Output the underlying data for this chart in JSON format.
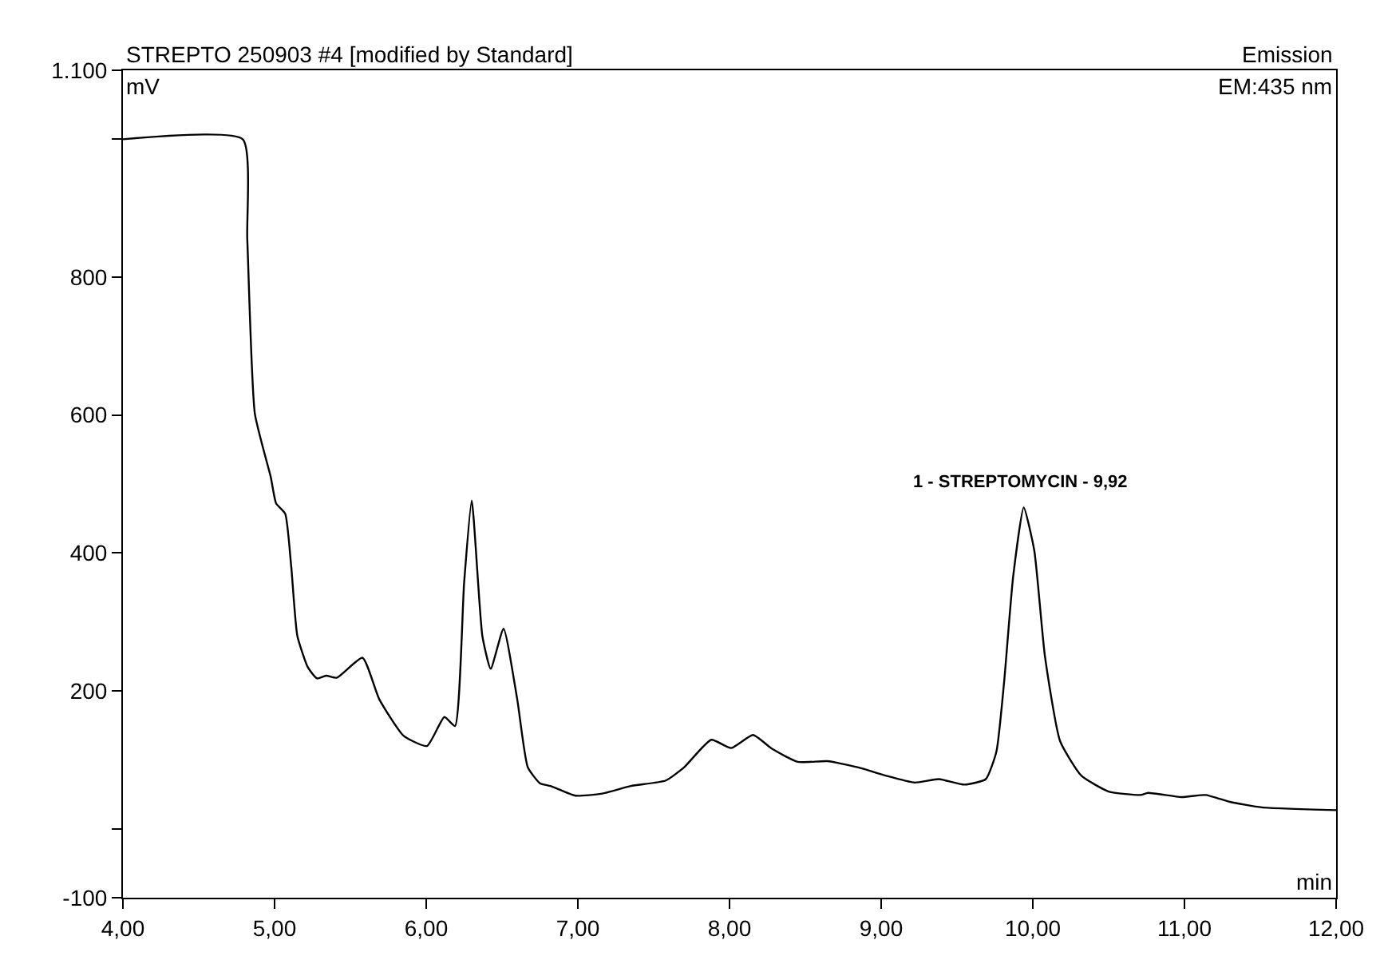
{
  "chart_data": {
    "type": "line",
    "title": "STREPTO 250903 #4 [modified by Standard]",
    "subtitle": "Emission",
    "xlabel": "min",
    "ylabel": "mV",
    "annotations": [
      "EM:435 nm",
      {
        "text": "1 - STREPTOMYCIN - 9,92",
        "x": 9.92,
        "y": 466
      }
    ],
    "x": [
      4.0,
      4.79,
      4.82,
      4.87,
      4.975,
      5.01,
      5.07,
      5.11,
      5.15,
      5.22,
      5.28,
      5.34,
      5.41,
      5.58,
      5.69,
      5.85,
      6.005,
      6.12,
      6.19,
      6.25,
      6.3,
      6.37,
      6.425,
      6.51,
      6.6,
      6.67,
      6.75,
      6.82,
      6.985,
      7.16,
      7.35,
      7.58,
      7.7,
      7.88,
      8.01,
      8.155,
      8.28,
      8.45,
      8.645,
      8.85,
      9.03,
      9.22,
      9.38,
      9.55,
      9.69,
      9.76,
      9.81,
      9.87,
      9.94,
      10.01,
      10.08,
      10.18,
      10.32,
      10.5,
      10.71,
      10.76,
      10.98,
      11.14,
      11.3,
      11.51,
      12.0
    ],
    "series": [
      {
        "color": "#000000",
        "values": [
          1000,
          1000,
          855,
          602,
          510,
          472,
          457,
          380,
          280,
          234,
          218,
          222,
          219,
          248,
          188,
          135,
          120,
          162,
          149,
          357,
          476,
          280,
          232,
          290,
          188,
          89,
          66,
          62,
          48,
          51,
          62,
          70,
          89,
          129,
          117,
          136,
          116,
          97,
          98,
          89,
          77,
          67,
          72,
          64,
          72,
          112,
          211,
          365,
          466,
          403,
          250,
          127,
          77,
          54,
          49,
          52,
          46,
          49,
          39,
          31,
          27
        ]
      }
    ],
    "xlim": [
      4,
      12
    ],
    "xticks": [
      {
        "value": 4,
        "label": "4,00"
      },
      {
        "value": 5,
        "label": "5,00"
      },
      {
        "value": 6,
        "label": "6,00"
      },
      {
        "value": 7,
        "label": "7,00"
      },
      {
        "value": 8,
        "label": "8,00"
      },
      {
        "value": 9,
        "label": "9,00"
      },
      {
        "value": 10,
        "label": "10,00"
      },
      {
        "value": 11,
        "label": "11,00"
      },
      {
        "value": 12,
        "label": "12,00"
      }
    ],
    "ylim": [
      -100,
      1100
    ],
    "yticks": [
      -100,
      {
        "value": 0,
        "label": null
      },
      200,
      400,
      600,
      800,
      {
        "value": 1000,
        "label": null
      },
      {
        "value": 1100,
        "label": "1.100"
      }
    ],
    "marker": "none",
    "line_style": "solid"
  }
}
